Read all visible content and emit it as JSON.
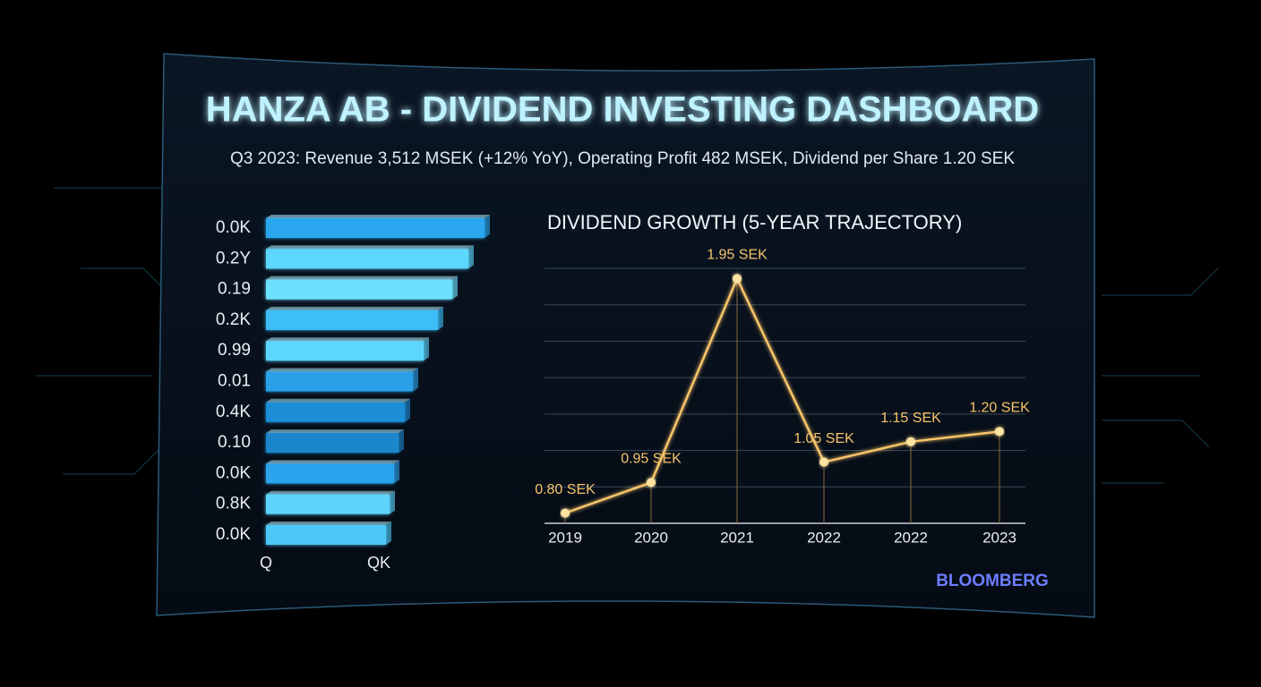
{
  "title": "HANZA AB - DIVIDEND INVESTING DASHBOARD",
  "subtitle": "Q3 2023: Revenue 3,512 MSEK (+12% YoY), Operating Profit 482 MSEK, Dividend per Share 1.20 SEK",
  "brand": "BLOOMBERG",
  "chart_data": [
    {
      "type": "hbar",
      "categories": [
        "0.0K",
        "0.2Y",
        "0.19",
        "0.2K",
        "0.99",
        "0.01",
        "0.4K",
        "0.10",
        "0.0K",
        "0.8K",
        "0.0K"
      ],
      "values": [
        244,
        226,
        208,
        192,
        176,
        164,
        155,
        148,
        143,
        138,
        134
      ],
      "colors": [
        "#2aa6ee",
        "#5cd8ff",
        "#6ce0ff",
        "#3cbef8",
        "#5cd6ff",
        "#2aa0e8",
        "#1f8ed8",
        "#1e86cc",
        "#2aa4ec",
        "#5cd4fc",
        "#4cc8f8"
      ],
      "xlim": [
        0,
        250
      ],
      "xticks": [
        {
          "value": 0,
          "label": "Q"
        },
        {
          "value": 126,
          "label": "QK"
        }
      ]
    },
    {
      "type": "line",
      "title": "DIVIDEND GROWTH (5-YEAR TRAJECTORY)",
      "categories": [
        "2019",
        "2020",
        "2021",
        "2022",
        "2022",
        "2023"
      ],
      "values": [
        0.8,
        0.95,
        1.95,
        1.05,
        1.15,
        1.2
      ],
      "value_labels": [
        "0.80 SEK",
        "0.95 SEK",
        "1.95 SEK",
        "1.05 SEK",
        "1.15 SEK",
        "1.20 SEK"
      ],
      "color": "#f7c46a",
      "ylim": [
        0.75,
        2.0
      ],
      "grid": true
    }
  ]
}
